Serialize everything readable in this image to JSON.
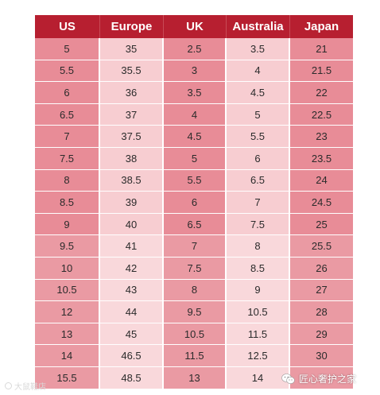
{
  "table": {
    "headers": [
      "US",
      "Europe",
      "UK",
      "Australia",
      "Japan"
    ],
    "rows": [
      [
        "5",
        "35",
        "2.5",
        "3.5",
        "21"
      ],
      [
        "5.5",
        "35.5",
        "3",
        "4",
        "21.5"
      ],
      [
        "6",
        "36",
        "3.5",
        "4.5",
        "22"
      ],
      [
        "6.5",
        "37",
        "4",
        "5",
        "22.5"
      ],
      [
        "7",
        "37.5",
        "4.5",
        "5.5",
        "23"
      ],
      [
        "7.5",
        "38",
        "5",
        "6",
        "23.5"
      ],
      [
        "8",
        "38.5",
        "5.5",
        "6.5",
        "24"
      ],
      [
        "8.5",
        "39",
        "6",
        "7",
        "24.5"
      ],
      [
        "9",
        "40",
        "6.5",
        "7.5",
        "25"
      ],
      [
        "9.5",
        "41",
        "7",
        "8",
        "25.5"
      ],
      [
        "10",
        "42",
        "7.5",
        "8.5",
        "26"
      ],
      [
        "10.5",
        "43",
        "8",
        "9",
        "27"
      ],
      [
        "12",
        "44",
        "9.5",
        "10.5",
        "28"
      ],
      [
        "13",
        "45",
        "10.5",
        "11.5",
        "29"
      ],
      [
        "14",
        "46.5",
        "11.5",
        "12.5",
        "30"
      ],
      [
        "15.5",
        "48.5",
        "13",
        "14",
        ""
      ]
    ]
  },
  "colors": {
    "header_bg": "#b71f30",
    "column_dark": "#e88c97",
    "column_light": "#f7cdd1"
  },
  "watermark": {
    "left_text": "大鼠鞋店",
    "right_text": "匠心奢护之家",
    "icon": "wechat-icon"
  }
}
